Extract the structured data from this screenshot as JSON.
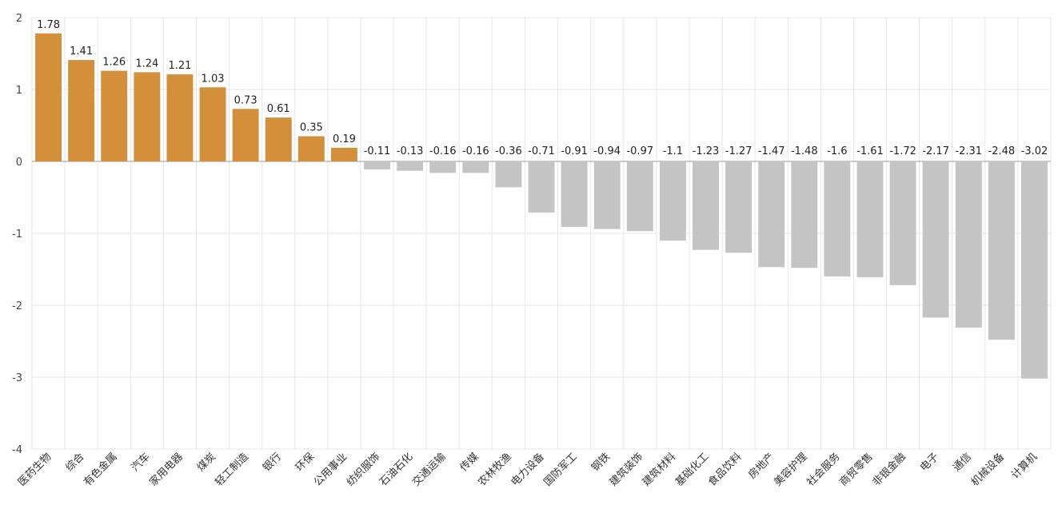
{
  "chart_data": {
    "type": "bar",
    "title": "",
    "xlabel": "",
    "ylabel": "",
    "ylim": [
      -4,
      2
    ],
    "yticks": [
      2,
      1,
      0,
      -1,
      -2,
      -3,
      -4
    ],
    "grid": true,
    "positive_color": "#D48F3A",
    "negative_color": "#C4C4C4",
    "categories": [
      "医药生物",
      "综合",
      "有色金属",
      "汽车",
      "家用电器",
      "煤炭",
      "轻工制造",
      "银行",
      "环保",
      "公用事业",
      "纺织服饰",
      "石油石化",
      "交通运输",
      "传媒",
      "农林牧渔",
      "电力设备",
      "国防军工",
      "钢铁",
      "建筑装饰",
      "建筑材料",
      "基础化工",
      "食品饮料",
      "房地产",
      "美容护理",
      "社会服务",
      "商贸零售",
      "非银金融",
      "电子",
      "通信",
      "机械设备",
      "计算机"
    ],
    "values": [
      1.78,
      1.41,
      1.26,
      1.24,
      1.21,
      1.03,
      0.73,
      0.61,
      0.35,
      0.19,
      -0.11,
      -0.13,
      -0.16,
      -0.16,
      -0.36,
      -0.71,
      -0.91,
      -0.94,
      -0.97,
      -1.1,
      -1.23,
      -1.27,
      -1.47,
      -1.48,
      -1.6,
      -1.61,
      -1.72,
      -2.17,
      -2.31,
      -2.48,
      -3.02
    ],
    "value_labels": [
      "1.78",
      "1.41",
      "1.26",
      "1.24",
      "1.21",
      "1.03",
      "0.73",
      "0.61",
      "0.35",
      "0.19",
      "-0.11",
      "-0.13",
      "-0.16",
      "-0.16",
      "-0.36",
      "-0.71",
      "-0.91",
      "-0.94",
      "-0.97",
      "-1.1",
      "-1.23",
      "-1.27",
      "-1.47",
      "-1.48",
      "-1.6",
      "-1.61",
      "-1.72",
      "-2.17",
      "-2.31",
      "-2.48",
      "-3.02"
    ]
  }
}
